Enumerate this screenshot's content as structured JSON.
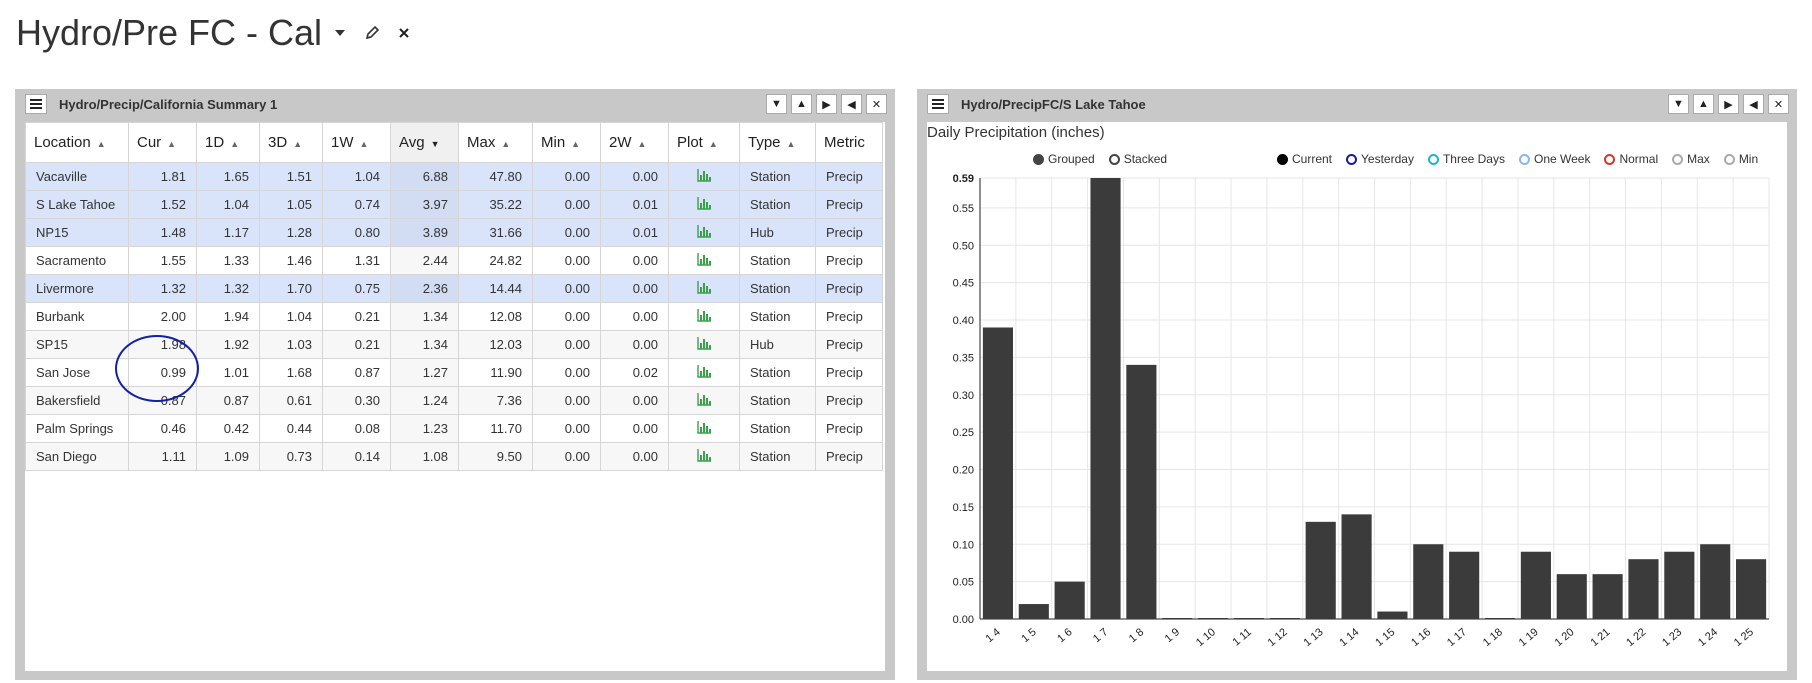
{
  "page": {
    "title": "Hydro/Pre FC - Cal",
    "icons": [
      "caret-down-icon",
      "pencil-icon",
      "close-icon"
    ]
  },
  "left_panel": {
    "title": "Hydro/Precip/California Summary 1",
    "columns": [
      "Location",
      "Cur",
      "1D",
      "3D",
      "1W",
      "Avg",
      "Max",
      "Min",
      "2W",
      "Plot",
      "Type",
      "Metric"
    ],
    "sorted_column": "Avg",
    "rows": [
      {
        "location": "Vacaville",
        "cur": "1.81",
        "d1": "1.65",
        "d3": "1.51",
        "w1": "1.04",
        "avg": "6.88",
        "max": "47.80",
        "min": "0.00",
        "w2": "0.00",
        "type": "Station",
        "metric": "Precip",
        "selected": true
      },
      {
        "location": "S Lake Tahoe",
        "cur": "1.52",
        "d1": "1.04",
        "d3": "1.05",
        "w1": "0.74",
        "avg": "3.97",
        "max": "35.22",
        "min": "0.00",
        "w2": "0.01",
        "type": "Station",
        "metric": "Precip",
        "selected": true
      },
      {
        "location": "NP15",
        "cur": "1.48",
        "d1": "1.17",
        "d3": "1.28",
        "w1": "0.80",
        "avg": "3.89",
        "max": "31.66",
        "min": "0.00",
        "w2": "0.01",
        "type": "Hub",
        "metric": "Precip",
        "selected": true
      },
      {
        "location": "Sacramento",
        "cur": "1.55",
        "d1": "1.33",
        "d3": "1.46",
        "w1": "1.31",
        "avg": "2.44",
        "max": "24.82",
        "min": "0.00",
        "w2": "0.00",
        "type": "Station",
        "metric": "Precip",
        "selected": false
      },
      {
        "location": "Livermore",
        "cur": "1.32",
        "d1": "1.32",
        "d3": "1.70",
        "w1": "0.75",
        "avg": "2.36",
        "max": "14.44",
        "min": "0.00",
        "w2": "0.00",
        "type": "Station",
        "metric": "Precip",
        "selected": true
      },
      {
        "location": "Burbank",
        "cur": "2.00",
        "d1": "1.94",
        "d3": "1.04",
        "w1": "0.21",
        "avg": "1.34",
        "max": "12.08",
        "min": "0.00",
        "w2": "0.00",
        "type": "Station",
        "metric": "Precip",
        "selected": false
      },
      {
        "location": "SP15",
        "cur": "1.98",
        "d1": "1.92",
        "d3": "1.03",
        "w1": "0.21",
        "avg": "1.34",
        "max": "12.03",
        "min": "0.00",
        "w2": "0.00",
        "type": "Hub",
        "metric": "Precip",
        "selected": false
      },
      {
        "location": "San Jose",
        "cur": "0.99",
        "d1": "1.01",
        "d3": "1.68",
        "w1": "0.87",
        "avg": "1.27",
        "max": "11.90",
        "min": "0.00",
        "w2": "0.02",
        "type": "Station",
        "metric": "Precip",
        "selected": false
      },
      {
        "location": "Bakersfield",
        "cur": "0.87",
        "d1": "0.87",
        "d3": "0.61",
        "w1": "0.30",
        "avg": "1.24",
        "max": "7.36",
        "min": "0.00",
        "w2": "0.00",
        "type": "Station",
        "metric": "Precip",
        "selected": false
      },
      {
        "location": "Palm Springs",
        "cur": "0.46",
        "d1": "0.42",
        "d3": "0.44",
        "w1": "0.08",
        "avg": "1.23",
        "max": "11.70",
        "min": "0.00",
        "w2": "0.00",
        "type": "Station",
        "metric": "Precip",
        "selected": false
      },
      {
        "location": "San Diego",
        "cur": "1.11",
        "d1": "1.09",
        "d3": "0.73",
        "w1": "0.14",
        "avg": "1.08",
        "max": "9.50",
        "min": "0.00",
        "w2": "0.00",
        "type": "Station",
        "metric": "Precip",
        "selected": false
      }
    ]
  },
  "right_panel": {
    "title": "Hydro/PrecipFC/S Lake Tahoe",
    "chart_title": "Daily Precipitation (inches)",
    "mode_options": [
      {
        "label": "Grouped",
        "filled": true
      },
      {
        "label": "Stacked",
        "filled": false
      }
    ],
    "series_legend": [
      {
        "label": "Current",
        "color": "#000000",
        "filled": true
      },
      {
        "label": "Yesterday",
        "color": "#1a1aa6",
        "filled": false
      },
      {
        "label": "Three Days",
        "color": "#1bb5d6",
        "filled": false
      },
      {
        "label": "One Week",
        "color": "#8ab8e8",
        "filled": false
      },
      {
        "label": "Normal",
        "color": "#d9342b",
        "filled": false
      },
      {
        "label": "Max",
        "color": "#aaaaaa",
        "filled": false
      },
      {
        "label": "Min",
        "color": "#aaaaaa",
        "filled": false
      }
    ]
  },
  "chart_data": {
    "type": "bar",
    "title": "Daily Precipitation (inches)",
    "categories": [
      "1 4",
      "1 5",
      "1 6",
      "1 7",
      "1 8",
      "1 9",
      "1 10",
      "1 11",
      "1 12",
      "1 13",
      "1 14",
      "1 15",
      "1 16",
      "1 17",
      "1 18",
      "1 19",
      "1 20",
      "1 21",
      "1 22",
      "1 23",
      "1 24",
      "1 25"
    ],
    "series": [
      {
        "name": "Current",
        "color": "#3b3b3b",
        "values": [
          0.39,
          0.02,
          0.05,
          0.59,
          0.34,
          0.001,
          0.001,
          0.001,
          0.001,
          0.13,
          0.14,
          0.01,
          0.1,
          0.09,
          0.001,
          0.09,
          0.06,
          0.06,
          0.08,
          0.09,
          0.1,
          0.08
        ]
      }
    ],
    "ylim": [
      0,
      0.59
    ],
    "yticks": [
      "0.00",
      "0.05",
      "0.10",
      "0.15",
      "0.20",
      "0.25",
      "0.30",
      "0.35",
      "0.40",
      "0.45",
      "0.50",
      "0.55",
      "0.59"
    ],
    "grid": true
  }
}
